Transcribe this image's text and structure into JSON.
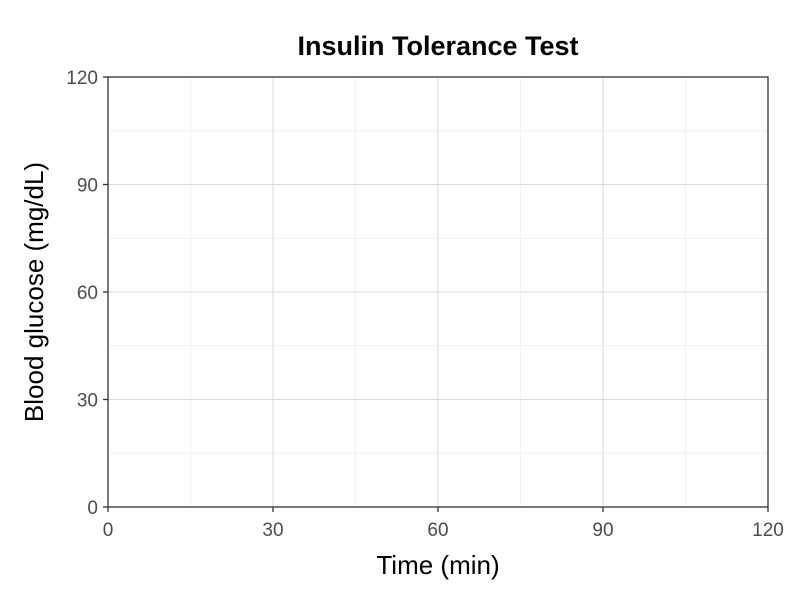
{
  "chart_data": {
    "type": "line",
    "title": "Insulin Tolerance Test",
    "xlabel": "Time (min)",
    "ylabel": "Blood glucose (mg/dL)",
    "xlim": [
      0,
      120
    ],
    "ylim": [
      0,
      120
    ],
    "x_ticks": [
      0,
      30,
      60,
      90,
      120
    ],
    "y_ticks": [
      0,
      30,
      60,
      90,
      120
    ],
    "x_tick_labels": [
      "0",
      "30",
      "60",
      "90",
      "120"
    ],
    "y_tick_labels": [
      "0",
      "30",
      "60",
      "90",
      "120"
    ],
    "grid": true,
    "series": [],
    "colors": {
      "major_grid": "#d9d9d9",
      "minor_grid": "#ebebeb",
      "frame": "#333333",
      "tick_text": "#4d4d4d"
    }
  }
}
